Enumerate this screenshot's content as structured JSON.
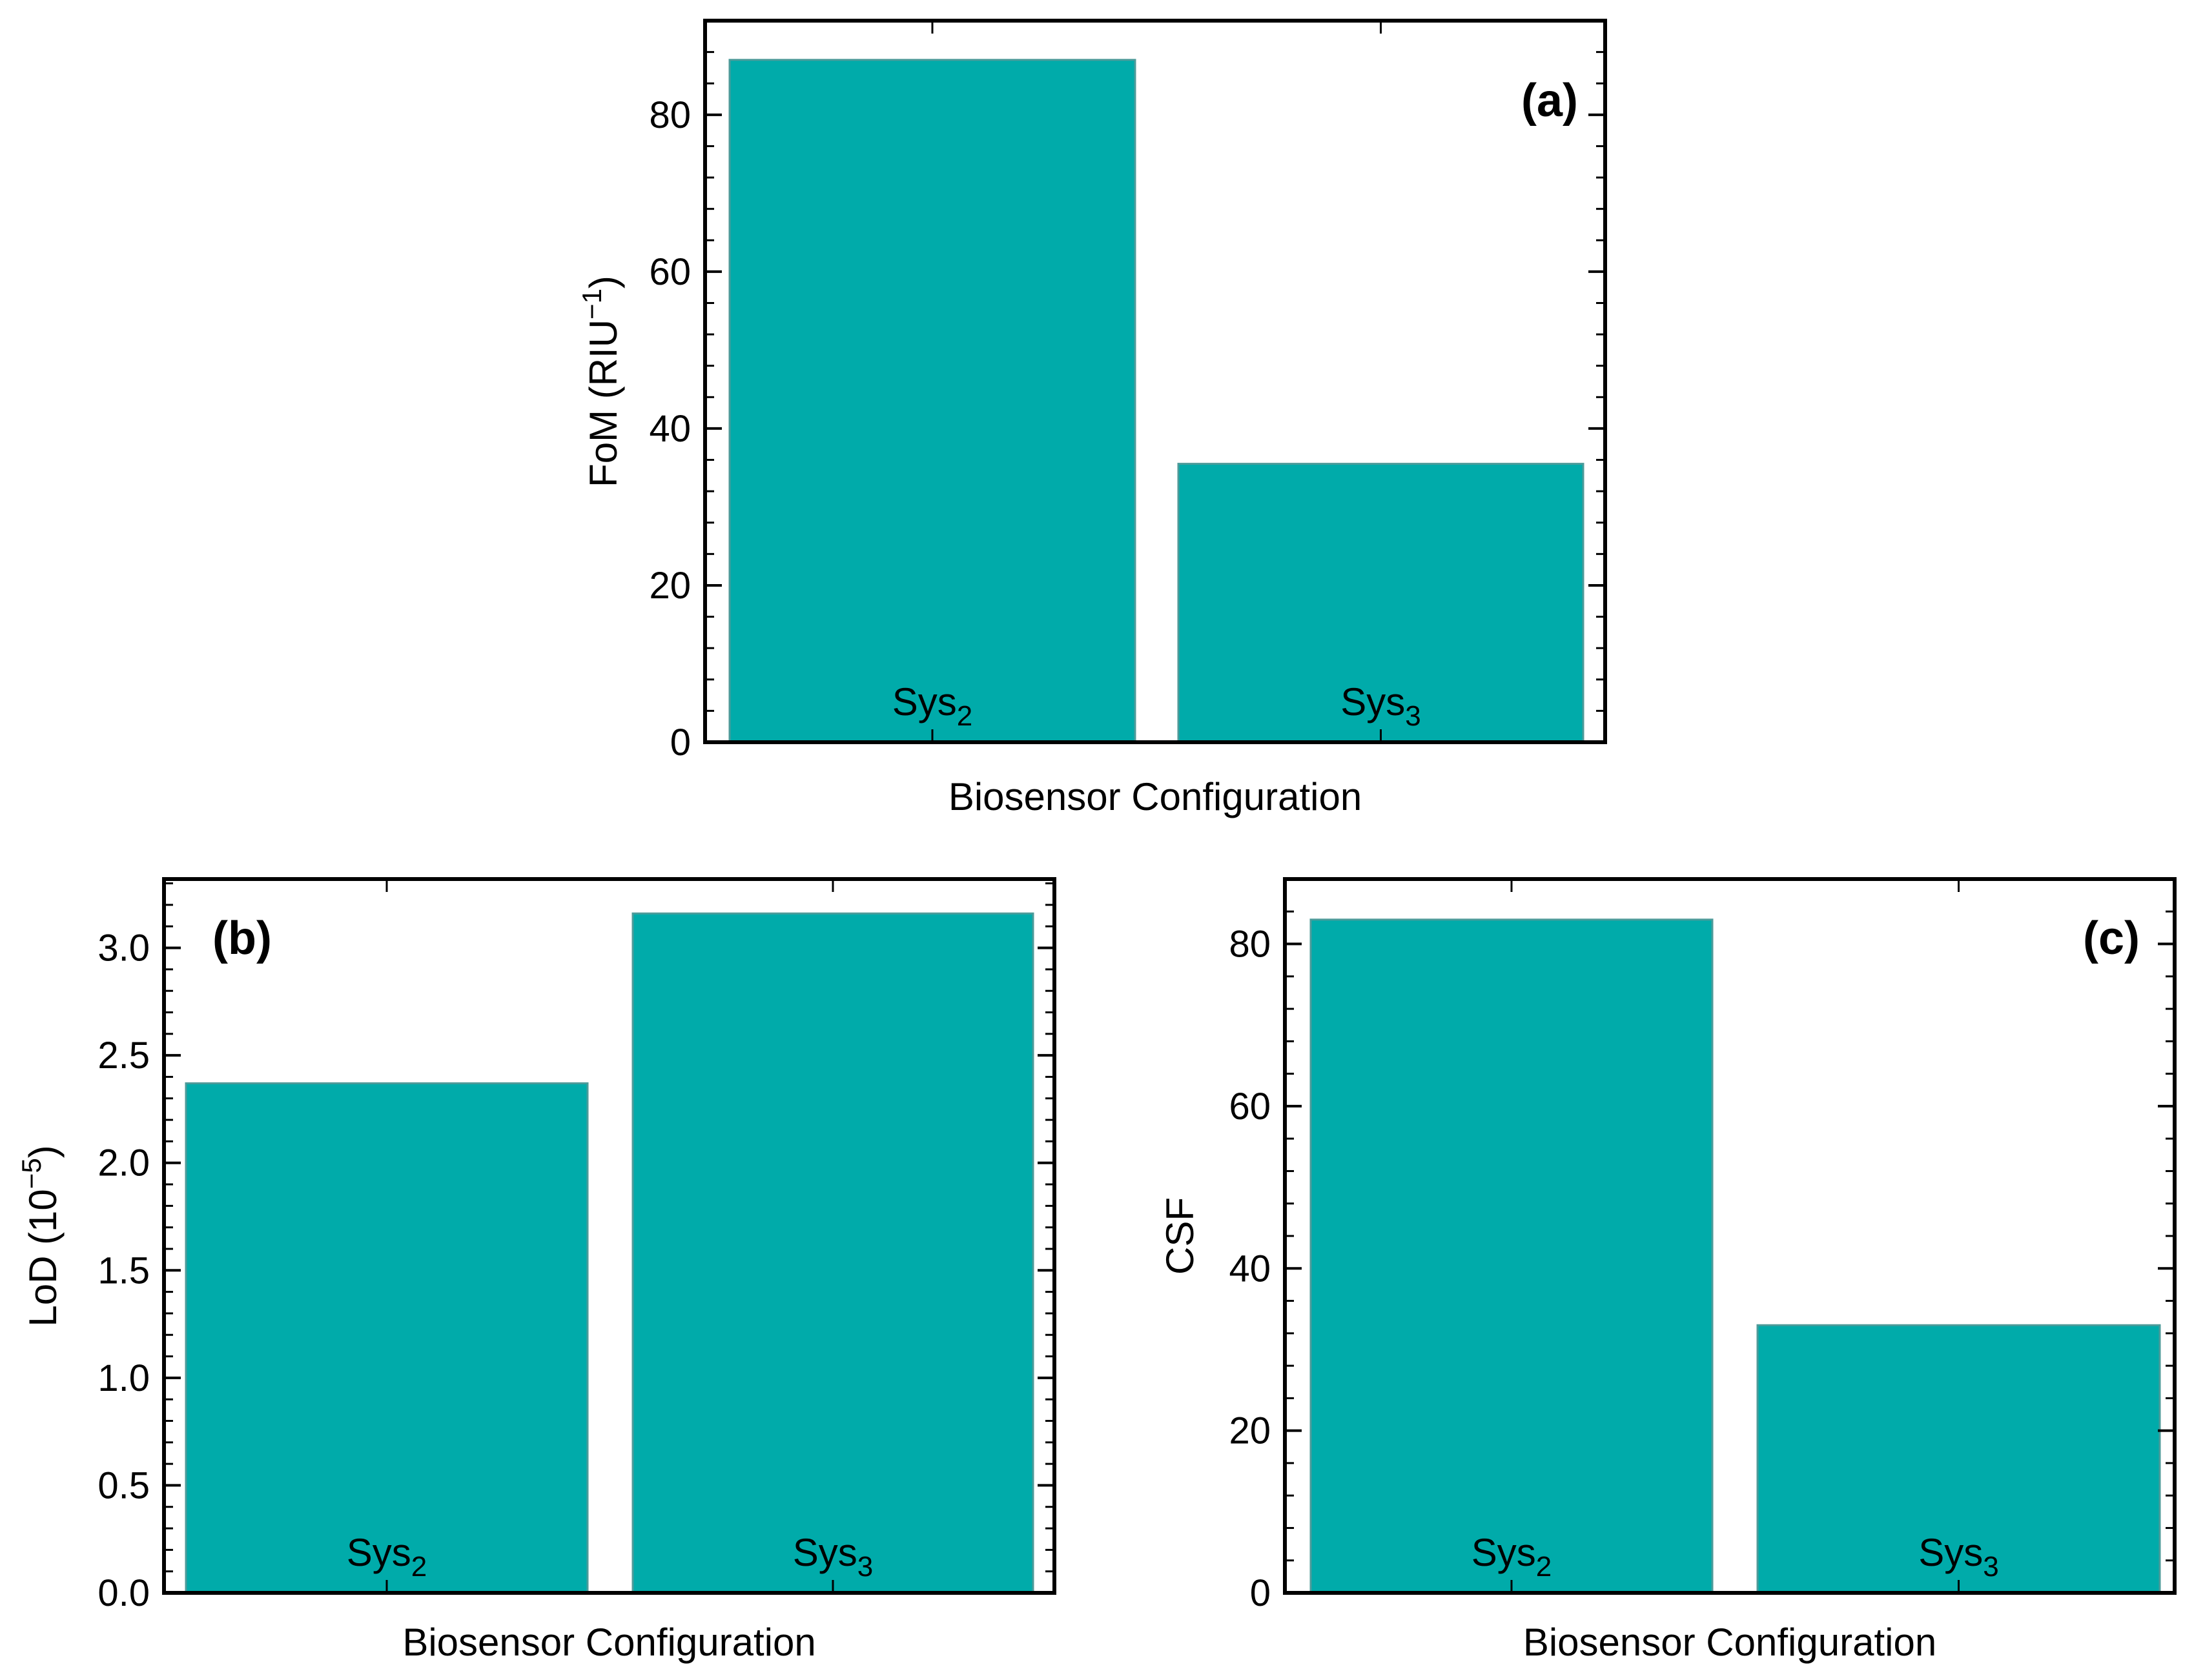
{
  "colors": {
    "bar": "#00ABAA",
    "bar_edge": "#4d9b9a",
    "frame": "#000000",
    "background": "#ffffff"
  },
  "chart_data": [
    {
      "type": "bar",
      "panel": "(a)",
      "categories": [
        {
          "base": "Sys",
          "sub": "2"
        },
        {
          "base": "Sys",
          "sub": "3"
        }
      ],
      "values": [
        87,
        35.5
      ],
      "ylabel": {
        "text": "FoM (RIU",
        "sup": "−1",
        "close": ")"
      },
      "xlabel": "Biosensor Configuration",
      "ylim": [
        0,
        92
      ],
      "yticks": [
        0,
        20,
        40,
        60,
        80
      ],
      "ytick_labels": [
        "0",
        "20",
        "40",
        "60",
        "80"
      ],
      "panel_label_position": "top-right"
    },
    {
      "type": "bar",
      "panel": "(b)",
      "categories": [
        {
          "base": "Sys",
          "sub": "2"
        },
        {
          "base": "Sys",
          "sub": "3"
        }
      ],
      "values": [
        2.37,
        3.16
      ],
      "ylabel": {
        "text": "LoD (10",
        "sup": "−5",
        "close": ")"
      },
      "xlabel": "Biosensor Configuration",
      "ylim": [
        0,
        3.32
      ],
      "yticks": [
        0,
        0.5,
        1,
        1.5,
        2,
        2.5,
        3
      ],
      "ytick_labels": [
        "0.0",
        "0.5",
        "1.0",
        "1.5",
        "2.0",
        "2.5",
        "3.0"
      ],
      "panel_label_position": "top-left"
    },
    {
      "type": "bar",
      "panel": "(c)",
      "categories": [
        {
          "base": "Sys",
          "sub": "2"
        },
        {
          "base": "Sys",
          "sub": "3"
        }
      ],
      "values": [
        83,
        33
      ],
      "ylabel": {
        "text": "CSF",
        "sup": "",
        "close": ""
      },
      "xlabel": "Biosensor Configuration",
      "ylim": [
        0,
        88
      ],
      "yticks": [
        0,
        20,
        40,
        60,
        80
      ],
      "ytick_labels": [
        "0",
        "20",
        "40",
        "60",
        "80"
      ],
      "panel_label_position": "top-right"
    }
  ]
}
